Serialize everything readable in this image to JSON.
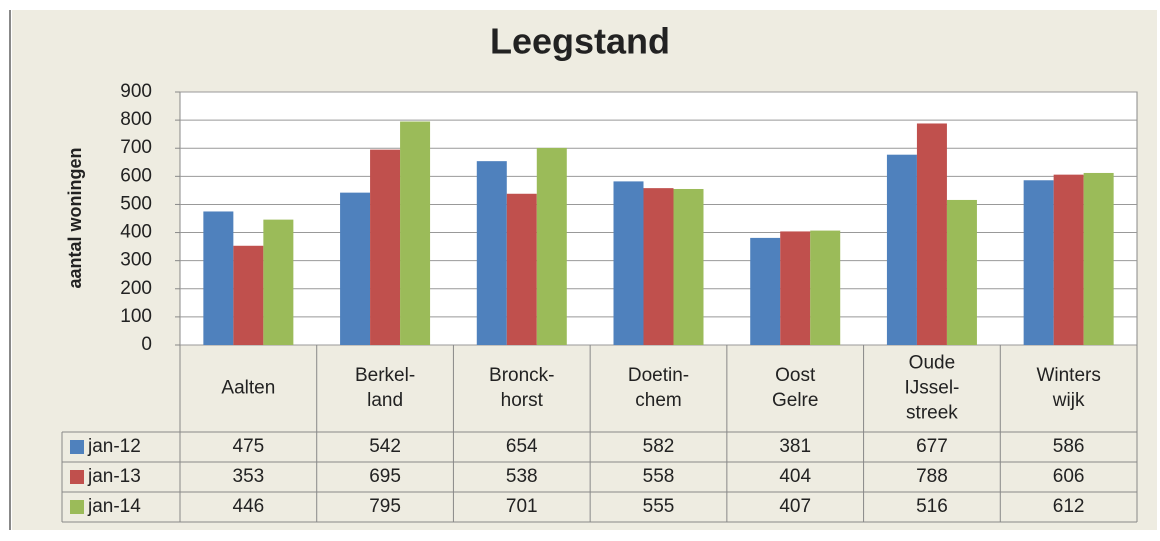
{
  "chart_data": {
    "type": "bar",
    "title": "Leegstand",
    "y_axis_label": "aantal woningen",
    "categories": [
      "Aalten",
      "Berkel-\nland",
      "Bronck-\nhorst",
      "Doetin-\nchem",
      "Oost\nGelre",
      "Oude\nIJssel-\nstreek",
      "Winters\nwijk"
    ],
    "series": [
      {
        "name": "jan-12",
        "color": "#4f81bd",
        "values": [
          475,
          542,
          654,
          582,
          381,
          677,
          586
        ]
      },
      {
        "name": "jan-13",
        "color": "#c0504d",
        "values": [
          353,
          695,
          538,
          558,
          404,
          788,
          606
        ]
      },
      {
        "name": "jan-14",
        "color": "#9bbb59",
        "values": [
          446,
          795,
          701,
          555,
          407,
          516,
          612
        ]
      }
    ],
    "ylim": [
      0,
      900
    ],
    "yticks": [
      0,
      100,
      200,
      300,
      400,
      500,
      600,
      700,
      800,
      900
    ],
    "grid": true,
    "data_table": true
  }
}
